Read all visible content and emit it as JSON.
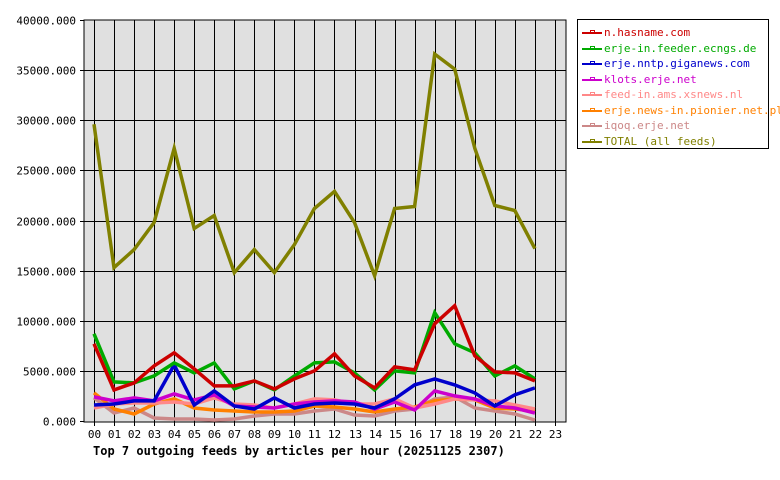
{
  "chart_data": {
    "type": "line",
    "title": "Top 7 outgoing feeds by articles per hour (20251125 2307)",
    "xlabel": "",
    "ylabel": "",
    "x": [
      "00",
      "01",
      "02",
      "03",
      "04",
      "05",
      "06",
      "07",
      "08",
      "09",
      "10",
      "11",
      "12",
      "13",
      "14",
      "15",
      "16",
      "17",
      "18",
      "19",
      "20",
      "21",
      "22",
      "23"
    ],
    "ylim": [
      0,
      40000
    ],
    "yticks": [
      "0.000",
      "5000.000",
      "10000.000",
      "15000.000",
      "20000.000",
      "25000.000",
      "30000.000",
      "35000.000",
      "40000.000"
    ],
    "grid": true,
    "legend_position": "right-top",
    "series": [
      {
        "name": "n.hasname.com",
        "color": "#cc0000",
        "values": [
          7700,
          3100,
          3800,
          5500,
          6800,
          5200,
          3500,
          3500,
          4000,
          3200,
          4200,
          5000,
          6700,
          4500,
          3300,
          5400,
          5100,
          9700,
          11500,
          6500,
          4900,
          4800,
          4000
        ]
      },
      {
        "name": "erje-in.feeder.ecngs.de",
        "color": "#00aa00",
        "values": [
          8700,
          3900,
          3800,
          4500,
          5800,
          4800,
          5800,
          3200,
          4000,
          3100,
          4500,
          5800,
          5900,
          4800,
          3100,
          5000,
          4800,
          10800,
          7700,
          6800,
          4500,
          5500,
          4200
        ]
      },
      {
        "name": "erje.nntp.giganews.com",
        "color": "#0000cc",
        "values": [
          1600,
          1700,
          2000,
          2000,
          5600,
          1600,
          3000,
          1500,
          1200,
          2300,
          1300,
          1700,
          1800,
          1700,
          1300,
          2200,
          3600,
          4200,
          3600,
          2800,
          1500,
          2600,
          3300
        ]
      },
      {
        "name": "klots.erje.net",
        "color": "#cc00cc",
        "values": [
          2400,
          2000,
          2300,
          2000,
          2700,
          2100,
          2600,
          1500,
          1400,
          1300,
          1700,
          1900,
          2000,
          1900,
          1200,
          1900,
          1100,
          3000,
          2500,
          2200,
          1500,
          1300,
          800
        ]
      },
      {
        "name": "feed-in.ams.xsnews.nl",
        "color": "#ff8888",
        "values": [
          1300,
          1700,
          1800,
          1800,
          1900,
          1700,
          2300,
          1700,
          1600,
          1300,
          1700,
          2200,
          2100,
          1700,
          1700,
          2200,
          1300,
          1700,
          2200,
          2100,
          2000,
          1600,
          1200
        ]
      },
      {
        "name": "erje.news-in.pionier.net.pl",
        "color": "#ff8000",
        "values": [
          2800,
          1200,
          700,
          1700,
          2200,
          1300,
          1100,
          1000,
          900,
          900,
          1000,
          1500,
          1400,
          1200,
          900,
          1200,
          1400,
          2000,
          2200,
          2100,
          1300,
          1200,
          1000
        ]
      },
      {
        "name": "iqoq.erje.net",
        "color": "#cc8888",
        "values": [
          2300,
          800,
          1300,
          300,
          200,
          200,
          100,
          200,
          500,
          700,
          700,
          1000,
          1200,
          600,
          500,
          1000,
          1200,
          2200,
          2400,
          1300,
          1000,
          700,
          100
        ]
      },
      {
        "name": "TOTAL (all feeds)",
        "color": "#808000",
        "values": [
          29600,
          15300,
          17100,
          19800,
          27200,
          19200,
          20500,
          14800,
          17100,
          14800,
          17600,
          21200,
          22900,
          19800,
          14500,
          21200,
          21400,
          36600,
          35100,
          27200,
          21500,
          21000,
          17200
        ]
      }
    ]
  },
  "legend": {
    "items": [
      {
        "label": "n.hasname.com",
        "color": "#cc0000"
      },
      {
        "label": "erje-in.feeder.ecngs.de",
        "color": "#00aa00"
      },
      {
        "label": "erje.nntp.giganews.com",
        "color": "#0000cc"
      },
      {
        "label": "klots.erje.net",
        "color": "#cc00cc"
      },
      {
        "label": "feed-in.ams.xsnews.nl",
        "color": "#ff8888"
      },
      {
        "label": "erje.news-in.pionier.net.pl",
        "color": "#ff8000"
      },
      {
        "label": "iqoq.erje.net",
        "color": "#cc8888"
      },
      {
        "label": "TOTAL (all feeds)",
        "color": "#808000"
      }
    ]
  },
  "colors": {
    "plot_background": "#e0e0e0",
    "grid": "#000000",
    "page_background": "#ffffff"
  }
}
